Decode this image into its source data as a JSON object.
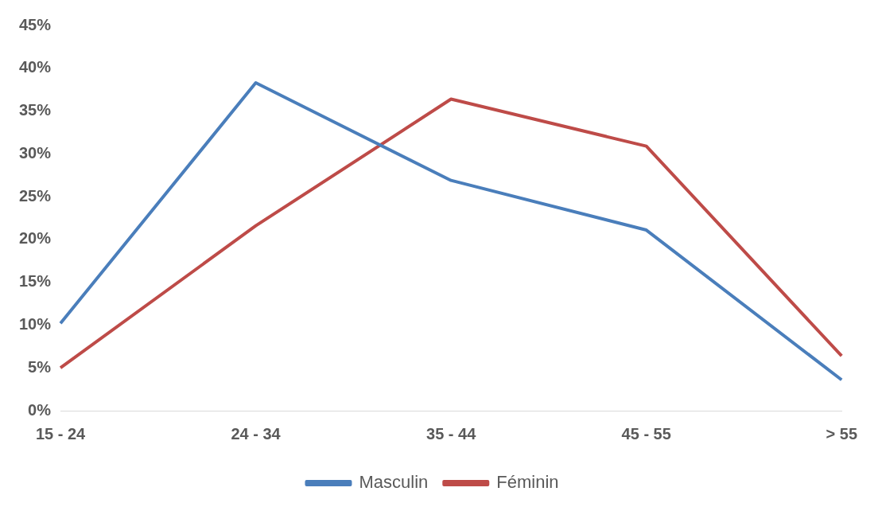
{
  "chart_data": {
    "type": "line",
    "categories": [
      "15 - 24",
      "24 - 34",
      "35 - 44",
      "45 - 55",
      "> 55"
    ],
    "series": [
      {
        "name": "Masculin",
        "color": "#4a7ebb",
        "values": [
          10.2,
          38.3,
          26.9,
          21.1,
          3.6
        ]
      },
      {
        "name": "Féminin",
        "color": "#be4b48",
        "values": [
          5.0,
          21.6,
          36.4,
          30.9,
          6.4
        ]
      }
    ],
    "ylim": [
      0,
      45
    ],
    "yticks": [
      {
        "value": 0,
        "label": "0%"
      },
      {
        "value": 5,
        "label": "5%"
      },
      {
        "value": 10,
        "label": "10%"
      },
      {
        "value": 15,
        "label": "15%"
      },
      {
        "value": 20,
        "label": "20%"
      },
      {
        "value": 25,
        "label": "25%"
      },
      {
        "value": 30,
        "label": "30%"
      },
      {
        "value": 35,
        "label": "35%"
      },
      {
        "value": 40,
        "label": "40%"
      },
      {
        "value": 45,
        "label": "45%"
      }
    ],
    "grid": false,
    "legend": "bottom",
    "marker": "none",
    "line_style": "solid"
  }
}
